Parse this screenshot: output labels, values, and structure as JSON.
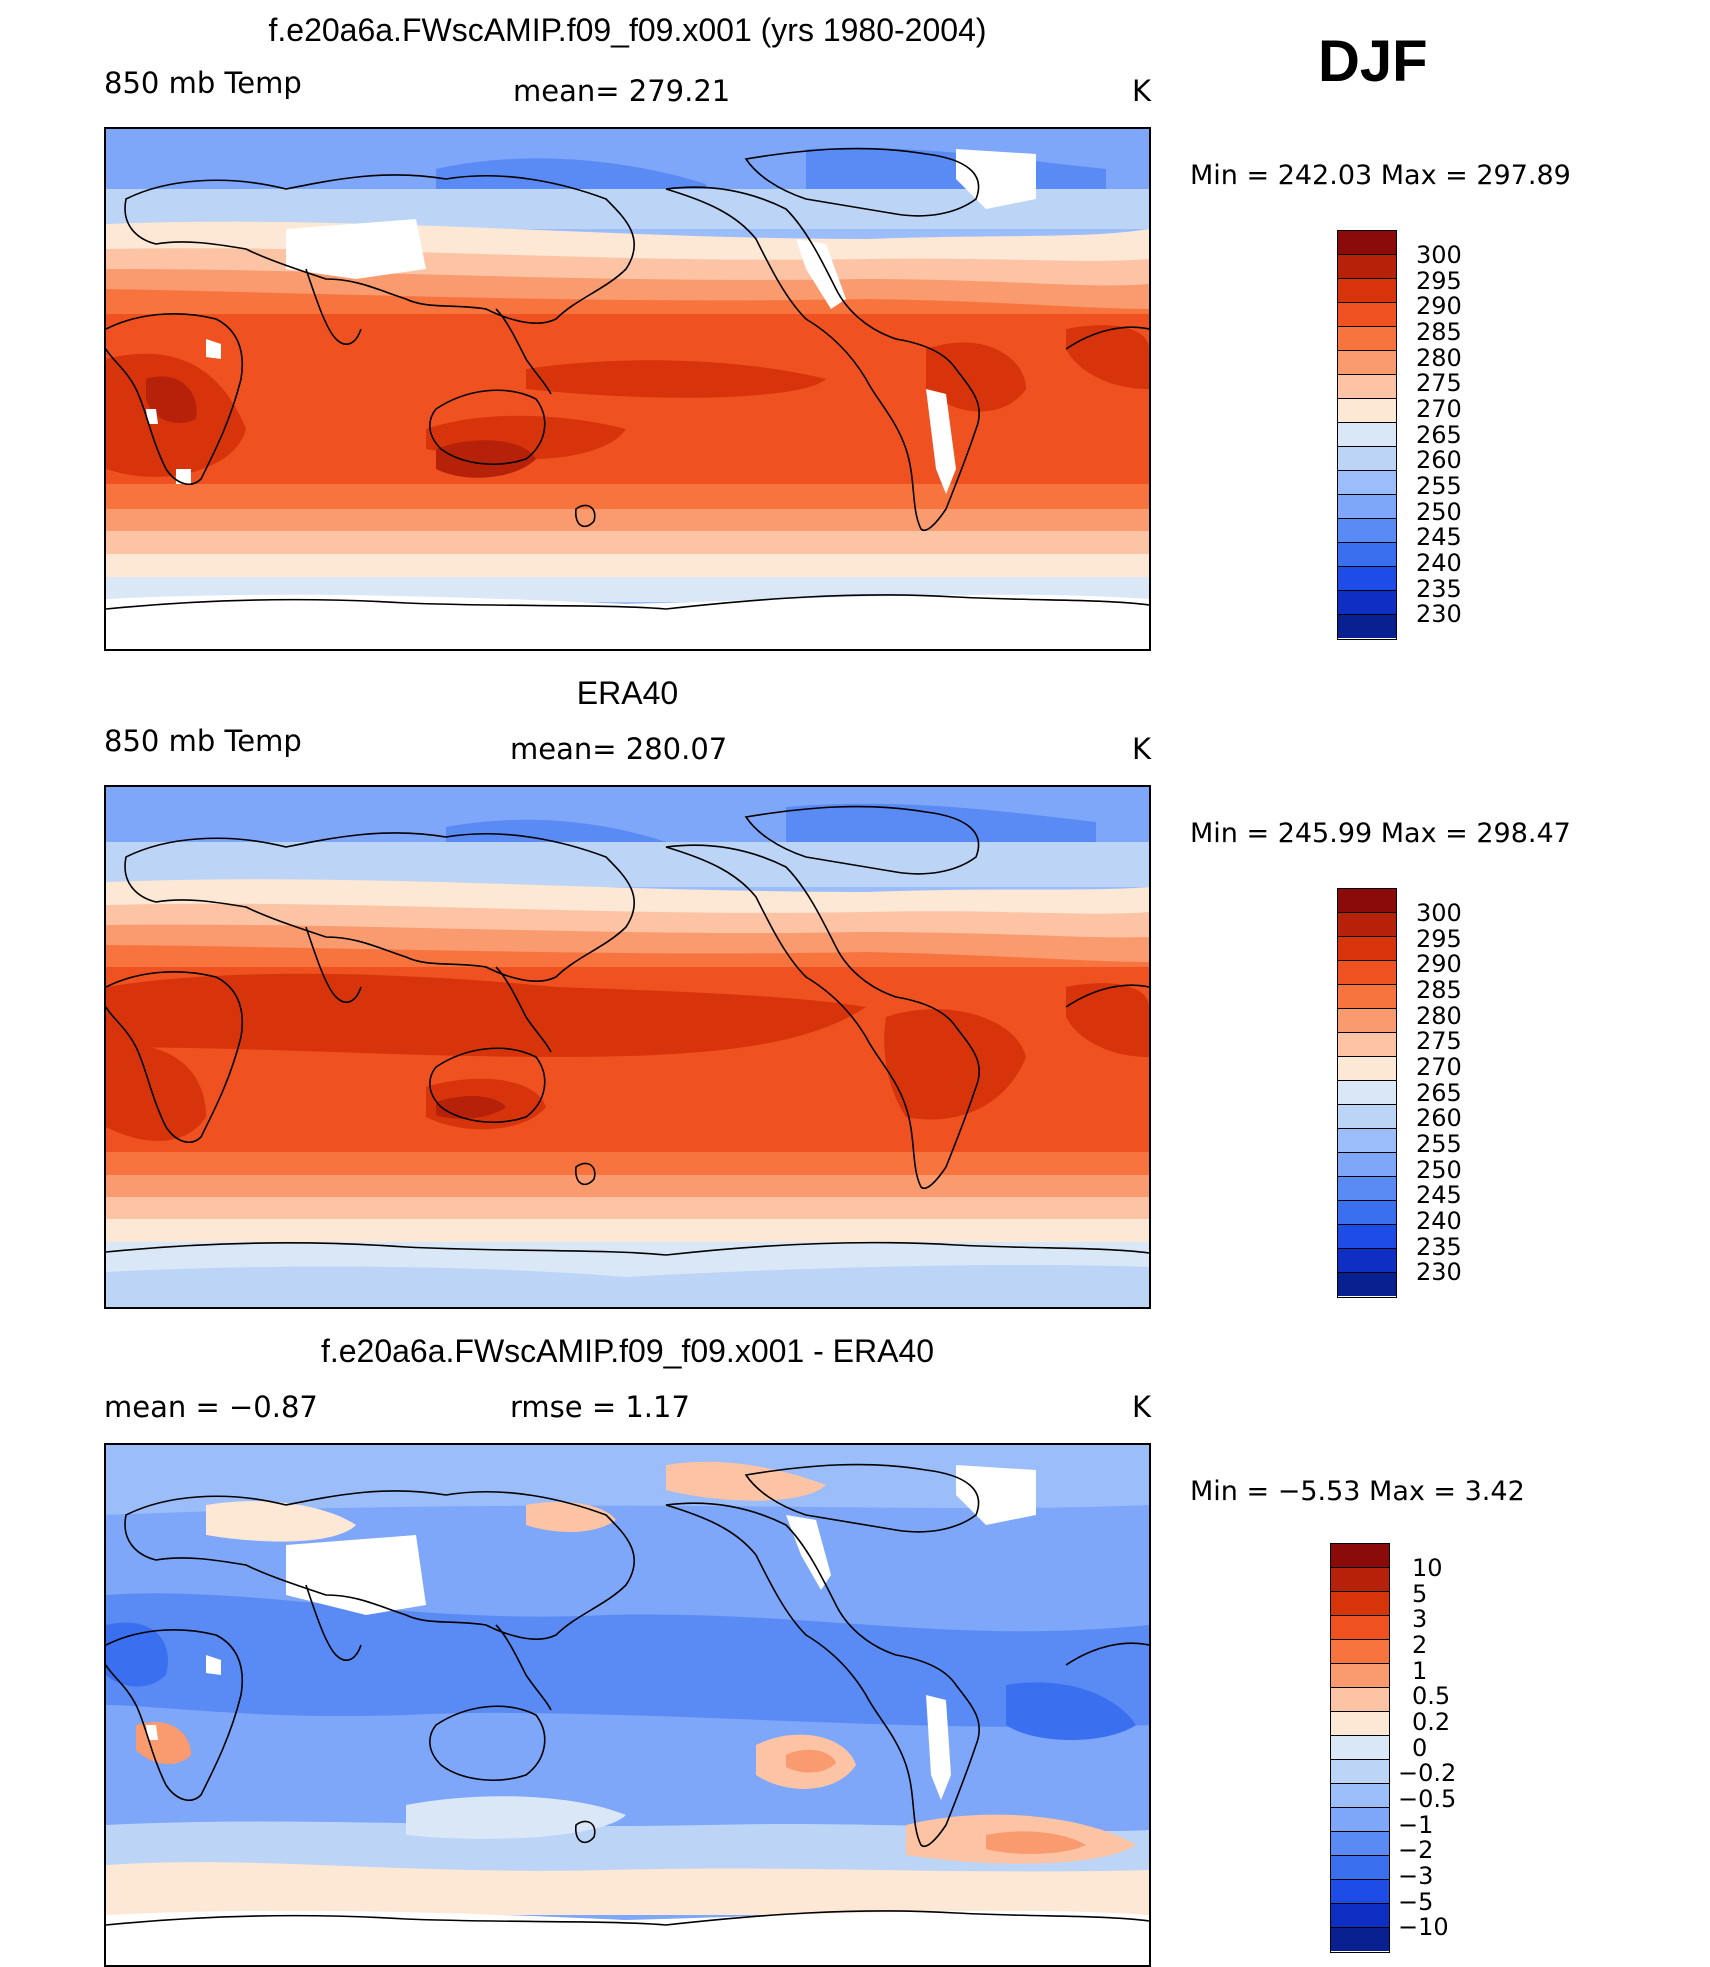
{
  "season": "DJF",
  "units_label": "K",
  "panels": [
    {
      "title": "f.e20a6a.FWscAMIP.f09_f09.x001 (yrs 1980-2004)",
      "left_label": "850 mb Temp",
      "center_label": "mean= 279.21",
      "right_label": "K",
      "min_max": "Min = 242.03 Max = 297.89",
      "colorbar_labels": [
        "300",
        "295",
        "290",
        "285",
        "280",
        "275",
        "270",
        "265",
        "260",
        "255",
        "250",
        "245",
        "240",
        "235",
        "230"
      ],
      "colors": [
        "#8b0a0a",
        "#b52109",
        "#d8340b",
        "#f05120",
        "#f8743f",
        "#f99a6f",
        "#fcc4a4",
        "#fde7d5",
        "#d9e7f7",
        "#bcd4f6",
        "#9bbdfa",
        "#7ea6f9",
        "#5a8af3",
        "#3a6ff0",
        "#1d4de6",
        "#0f2fc4",
        "#082090"
      ],
      "data_range": "Min = 242.03 Max = 297.89"
    },
    {
      "title": "ERA40",
      "left_label": "850 mb Temp",
      "center_label": "mean= 280.07",
      "right_label": "K",
      "min_max": "Min = 245.99 Max = 298.47",
      "colorbar_labels": [
        "300",
        "295",
        "290",
        "285",
        "280",
        "275",
        "270",
        "265",
        "260",
        "255",
        "250",
        "245",
        "240",
        "235",
        "230"
      ],
      "colors": [
        "#8b0a0a",
        "#b52109",
        "#d8340b",
        "#f05120",
        "#f8743f",
        "#f99a6f",
        "#fcc4a4",
        "#fde7d5",
        "#d9e7f7",
        "#bcd4f6",
        "#9bbdfa",
        "#7ea6f9",
        "#5a8af3",
        "#3a6ff0",
        "#1d4de6",
        "#0f2fc4",
        "#082090"
      ],
      "data_range": "Min = 245.99 Max = 298.47"
    },
    {
      "title": "f.e20a6a.FWscAMIP.f09_f09.x001 - ERA40",
      "left_label": "mean =   −0.87",
      "center_label": "rmse =     1.17",
      "right_label": "K",
      "min_max": "Min =   −5.53 Max =     3.42",
      "colorbar_labels": [
        "10",
        "5",
        "3",
        "2",
        "1",
        "0.5",
        "0.2",
        "0",
        "−0.2",
        "−0.5",
        "−1",
        "−2",
        "−3",
        "−5",
        "−10"
      ],
      "colors": [
        "#8b0a0a",
        "#b52109",
        "#d8340b",
        "#f05120",
        "#f8743f",
        "#f99a6f",
        "#fcc4a4",
        "#fde7d5",
        "#d9e7f7",
        "#bcd4f6",
        "#9bbdfa",
        "#7ea6f9",
        "#5a8af3",
        "#3a6ff0",
        "#1d4de6",
        "#0f2fc4",
        "#082090"
      ],
      "data_range": "Min = −5.53 Max = 3.42"
    }
  ]
}
